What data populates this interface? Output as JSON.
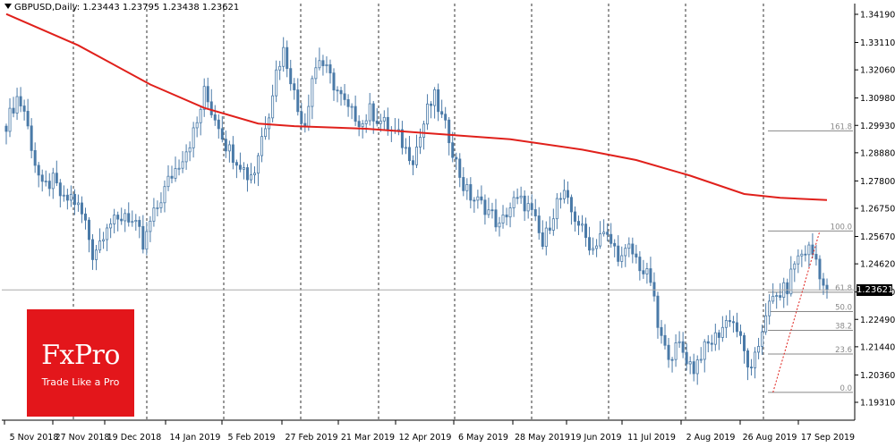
{
  "header": {
    "symbol": "GBPUSD,Daily:",
    "ohlc": "1.23443 1.23795 1.23438 1.23621"
  },
  "logo": {
    "brand": "FxPro",
    "tagline": "Trade Like a Pro"
  },
  "colors": {
    "up": "#4a7aa8",
    "down": "#4a7aa8",
    "ma": "#e0201b",
    "grid": "#000000",
    "fib": "#888888",
    "zigzag": "#e0201b",
    "logo_bg": "#e3161b"
  },
  "chart_data": {
    "type": "candlestick",
    "title": "",
    "xlabel": "",
    "ylabel": "",
    "ylim": [
      1.1931,
      1.3449
    ],
    "y_ticks": [
      "1.34190",
      "1.33110",
      "1.32060",
      "1.30980",
      "1.29930",
      "1.28880",
      "1.27800",
      "1.26750",
      "1.25670",
      "1.24620",
      "1.23540",
      "1.22490",
      "1.21440",
      "1.20360",
      "1.19310"
    ],
    "x_ticks": [
      "5 Nov 2018",
      "27 Nov 2018",
      "19 Dec 2018",
      "14 Jan 2019",
      "5 Feb 2019",
      "27 Feb 2019",
      "21 Mar 2019",
      "12 Apr 2019",
      "6 May 2019",
      "28 May 2019",
      "19 Jun 2019",
      "11 Jul 2019",
      "2 Aug 2019",
      "26 Aug 2019",
      "17 Sep 2019"
    ],
    "grid": true,
    "current_price": "1.23621",
    "close_path": [
      [
        0,
        1.3
      ],
      [
        3,
        1.31
      ],
      [
        5,
        1.305
      ],
      [
        8,
        1.285
      ],
      [
        10,
        1.275
      ],
      [
        13,
        1.278
      ],
      [
        16,
        1.27
      ],
      [
        18,
        1.272
      ],
      [
        20,
        1.268
      ],
      [
        22,
        1.262
      ],
      [
        24,
        1.25
      ],
      [
        26,
        1.255
      ],
      [
        28,
        1.262
      ],
      [
        31,
        1.262
      ],
      [
        33,
        1.266
      ],
      [
        35,
        1.262
      ],
      [
        37,
        1.258
      ],
      [
        38,
        1.252
      ],
      [
        40,
        1.262
      ],
      [
        42,
        1.268
      ],
      [
        45,
        1.278
      ],
      [
        48,
        1.285
      ],
      [
        51,
        1.293
      ],
      [
        53,
        1.3
      ],
      [
        55,
        1.312
      ],
      [
        57,
        1.305
      ],
      [
        59,
        1.3
      ],
      [
        61,
        1.292
      ],
      [
        63,
        1.288
      ],
      [
        65,
        1.285
      ],
      [
        67,
        1.28
      ],
      [
        69,
        1.282
      ],
      [
        71,
        1.295
      ],
      [
        73,
        1.305
      ],
      [
        75,
        1.32
      ],
      [
        77,
        1.328
      ],
      [
        79,
        1.318
      ],
      [
        81,
        1.305
      ],
      [
        83,
        1.3
      ],
      [
        85,
        1.318
      ],
      [
        87,
        1.325
      ],
      [
        89,
        1.32
      ],
      [
        91,
        1.315
      ],
      [
        93,
        1.31
      ],
      [
        95,
        1.305
      ],
      [
        97,
        1.303
      ],
      [
        99,
        1.3
      ],
      [
        101,
        1.305
      ],
      [
        103,
        1.302
      ],
      [
        105,
        1.3
      ],
      [
        107,
        1.297
      ],
      [
        109,
        1.295
      ],
      [
        111,
        1.29
      ],
      [
        113,
        1.287
      ],
      [
        115,
        1.295
      ],
      [
        117,
        1.305
      ],
      [
        119,
        1.31
      ],
      [
        121,
        1.302
      ],
      [
        123,
        1.295
      ],
      [
        125,
        1.285
      ],
      [
        127,
        1.276
      ],
      [
        129,
        1.272
      ],
      [
        131,
        1.27
      ],
      [
        133,
        1.268
      ],
      [
        135,
        1.265
      ],
      [
        137,
        1.26
      ],
      [
        139,
        1.266
      ],
      [
        141,
        1.27
      ],
      [
        143,
        1.27
      ],
      [
        145,
        1.268
      ],
      [
        147,
        1.262
      ],
      [
        149,
        1.253
      ],
      [
        151,
        1.262
      ],
      [
        153,
        1.27
      ],
      [
        155,
        1.272
      ],
      [
        157,
        1.266
      ],
      [
        159,
        1.262
      ],
      [
        161,
        1.256
      ],
      [
        163,
        1.252
      ],
      [
        165,
        1.258
      ],
      [
        167,
        1.256
      ],
      [
        169,
        1.252
      ],
      [
        171,
        1.248
      ],
      [
        173,
        1.252
      ],
      [
        175,
        1.248
      ],
      [
        177,
        1.243
      ],
      [
        179,
        1.24
      ],
      [
        181,
        1.222
      ],
      [
        183,
        1.213
      ],
      [
        185,
        1.212
      ],
      [
        187,
        1.215
      ],
      [
        189,
        1.21
      ],
      [
        191,
        1.206
      ],
      [
        193,
        1.212
      ],
      [
        195,
        1.215
      ],
      [
        197,
        1.218
      ],
      [
        199,
        1.222
      ],
      [
        201,
        1.226
      ],
      [
        203,
        1.221
      ],
      [
        205,
        1.212
      ],
      [
        207,
        1.204
      ],
      [
        209,
        1.215
      ],
      [
        211,
        1.228
      ],
      [
        213,
        1.232
      ],
      [
        215,
        1.235
      ],
      [
        217,
        1.237
      ],
      [
        219,
        1.247
      ],
      [
        221,
        1.25
      ],
      [
        223,
        1.252
      ],
      [
        225,
        1.248
      ],
      [
        227,
        1.238
      ],
      [
        228,
        1.2362
      ]
    ],
    "series": [
      {
        "name": "",
        "type": "line",
        "points": [
          [
            0,
            1.342
          ],
          [
            20,
            1.33
          ],
          [
            40,
            1.315
          ],
          [
            55,
            1.306
          ],
          [
            70,
            1.3
          ],
          [
            80,
            1.299
          ],
          [
            100,
            1.298
          ],
          [
            120,
            1.296
          ],
          [
            140,
            1.294
          ],
          [
            160,
            1.29
          ],
          [
            175,
            1.286
          ],
          [
            190,
            1.28
          ],
          [
            205,
            1.273
          ],
          [
            215,
            1.2715
          ],
          [
            228,
            1.2707
          ]
        ]
      }
    ],
    "fibonacci": {
      "levels": [
        {
          "label": "161.8",
          "value": 1.2972
        },
        {
          "label": "100.0",
          "value": 1.2588
        },
        {
          "label": "61.8",
          "value": 1.2353
        },
        {
          "label": "50.0",
          "value": 1.2279
        },
        {
          "label": "38.2",
          "value": 1.2207
        },
        {
          "label": "23.6",
          "value": 1.2116
        },
        {
          "label": "0.0",
          "value": 1.1969
        }
      ]
    },
    "zigzag": [
      [
        213,
        1.1969
      ],
      [
        226,
        1.2588
      ]
    ]
  }
}
